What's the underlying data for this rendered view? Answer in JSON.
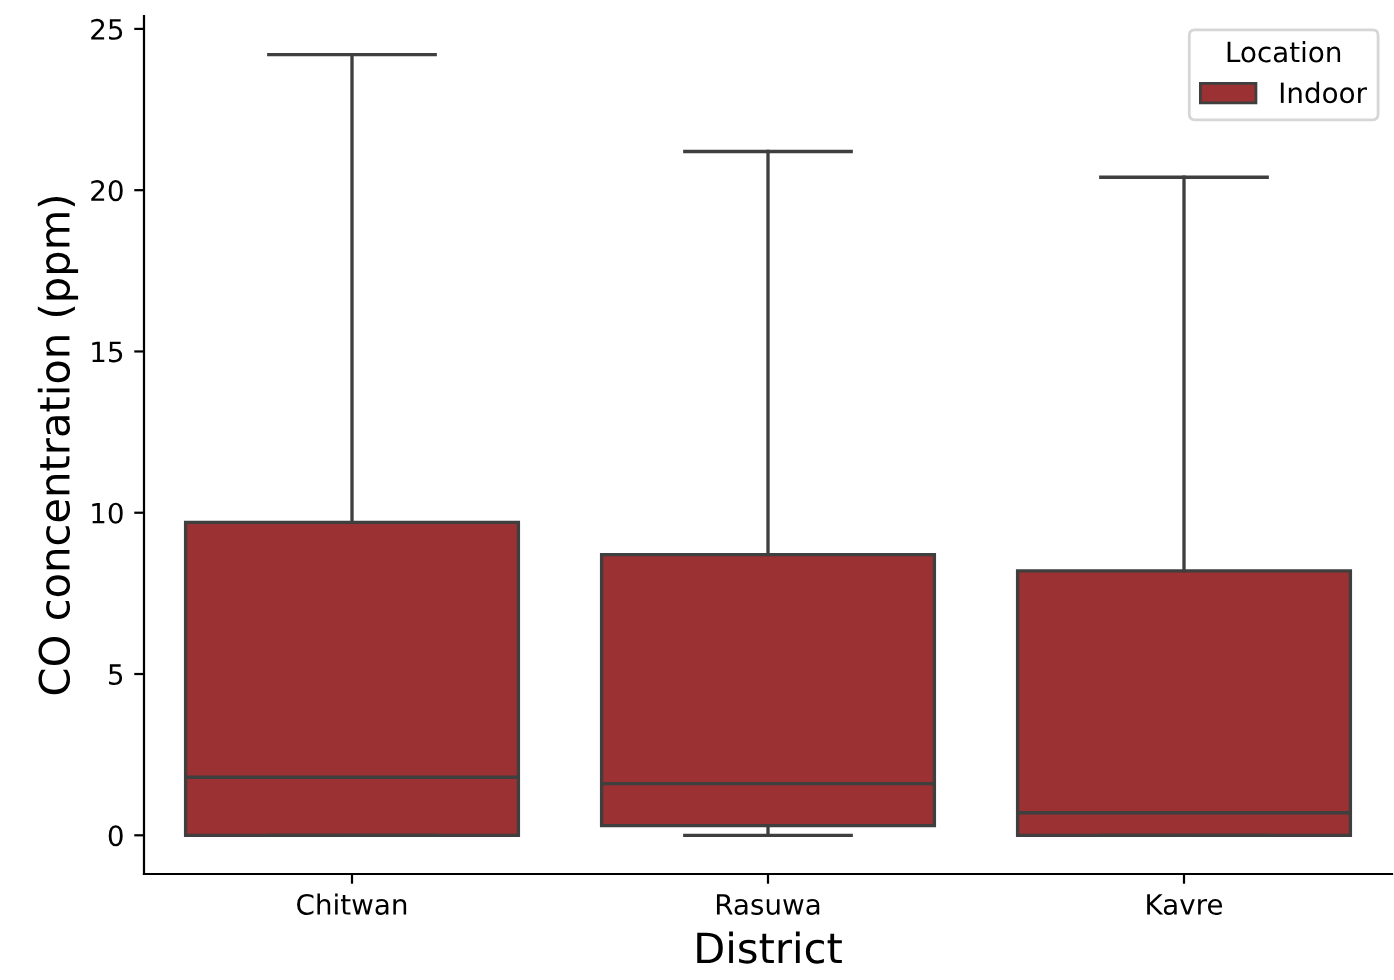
{
  "chart_data": {
    "type": "box",
    "xlabel": "District",
    "ylabel": "CO concentration (ppm)",
    "legend_title": "Location",
    "legend": "top right",
    "categories": [
      "Chitwan",
      "Rasuwa",
      "Kavre"
    ],
    "series": [
      {
        "name": "Indoor",
        "color": "#9c3133",
        "boxes": [
          {
            "low": 0,
            "q1": 0,
            "median": 1.8,
            "q3": 9.7,
            "high": 24.2
          },
          {
            "low": 0,
            "q1": 0.3,
            "median": 1.6,
            "q3": 8.7,
            "high": 21.2
          },
          {
            "low": 0,
            "q1": 0,
            "median": 0.7,
            "q3": 8.2,
            "high": 20.4
          }
        ]
      }
    ],
    "ylim": [
      -1.2,
      25.4
    ],
    "yticks": [
      0,
      5,
      10,
      15,
      20,
      25
    ],
    "grid": false
  }
}
